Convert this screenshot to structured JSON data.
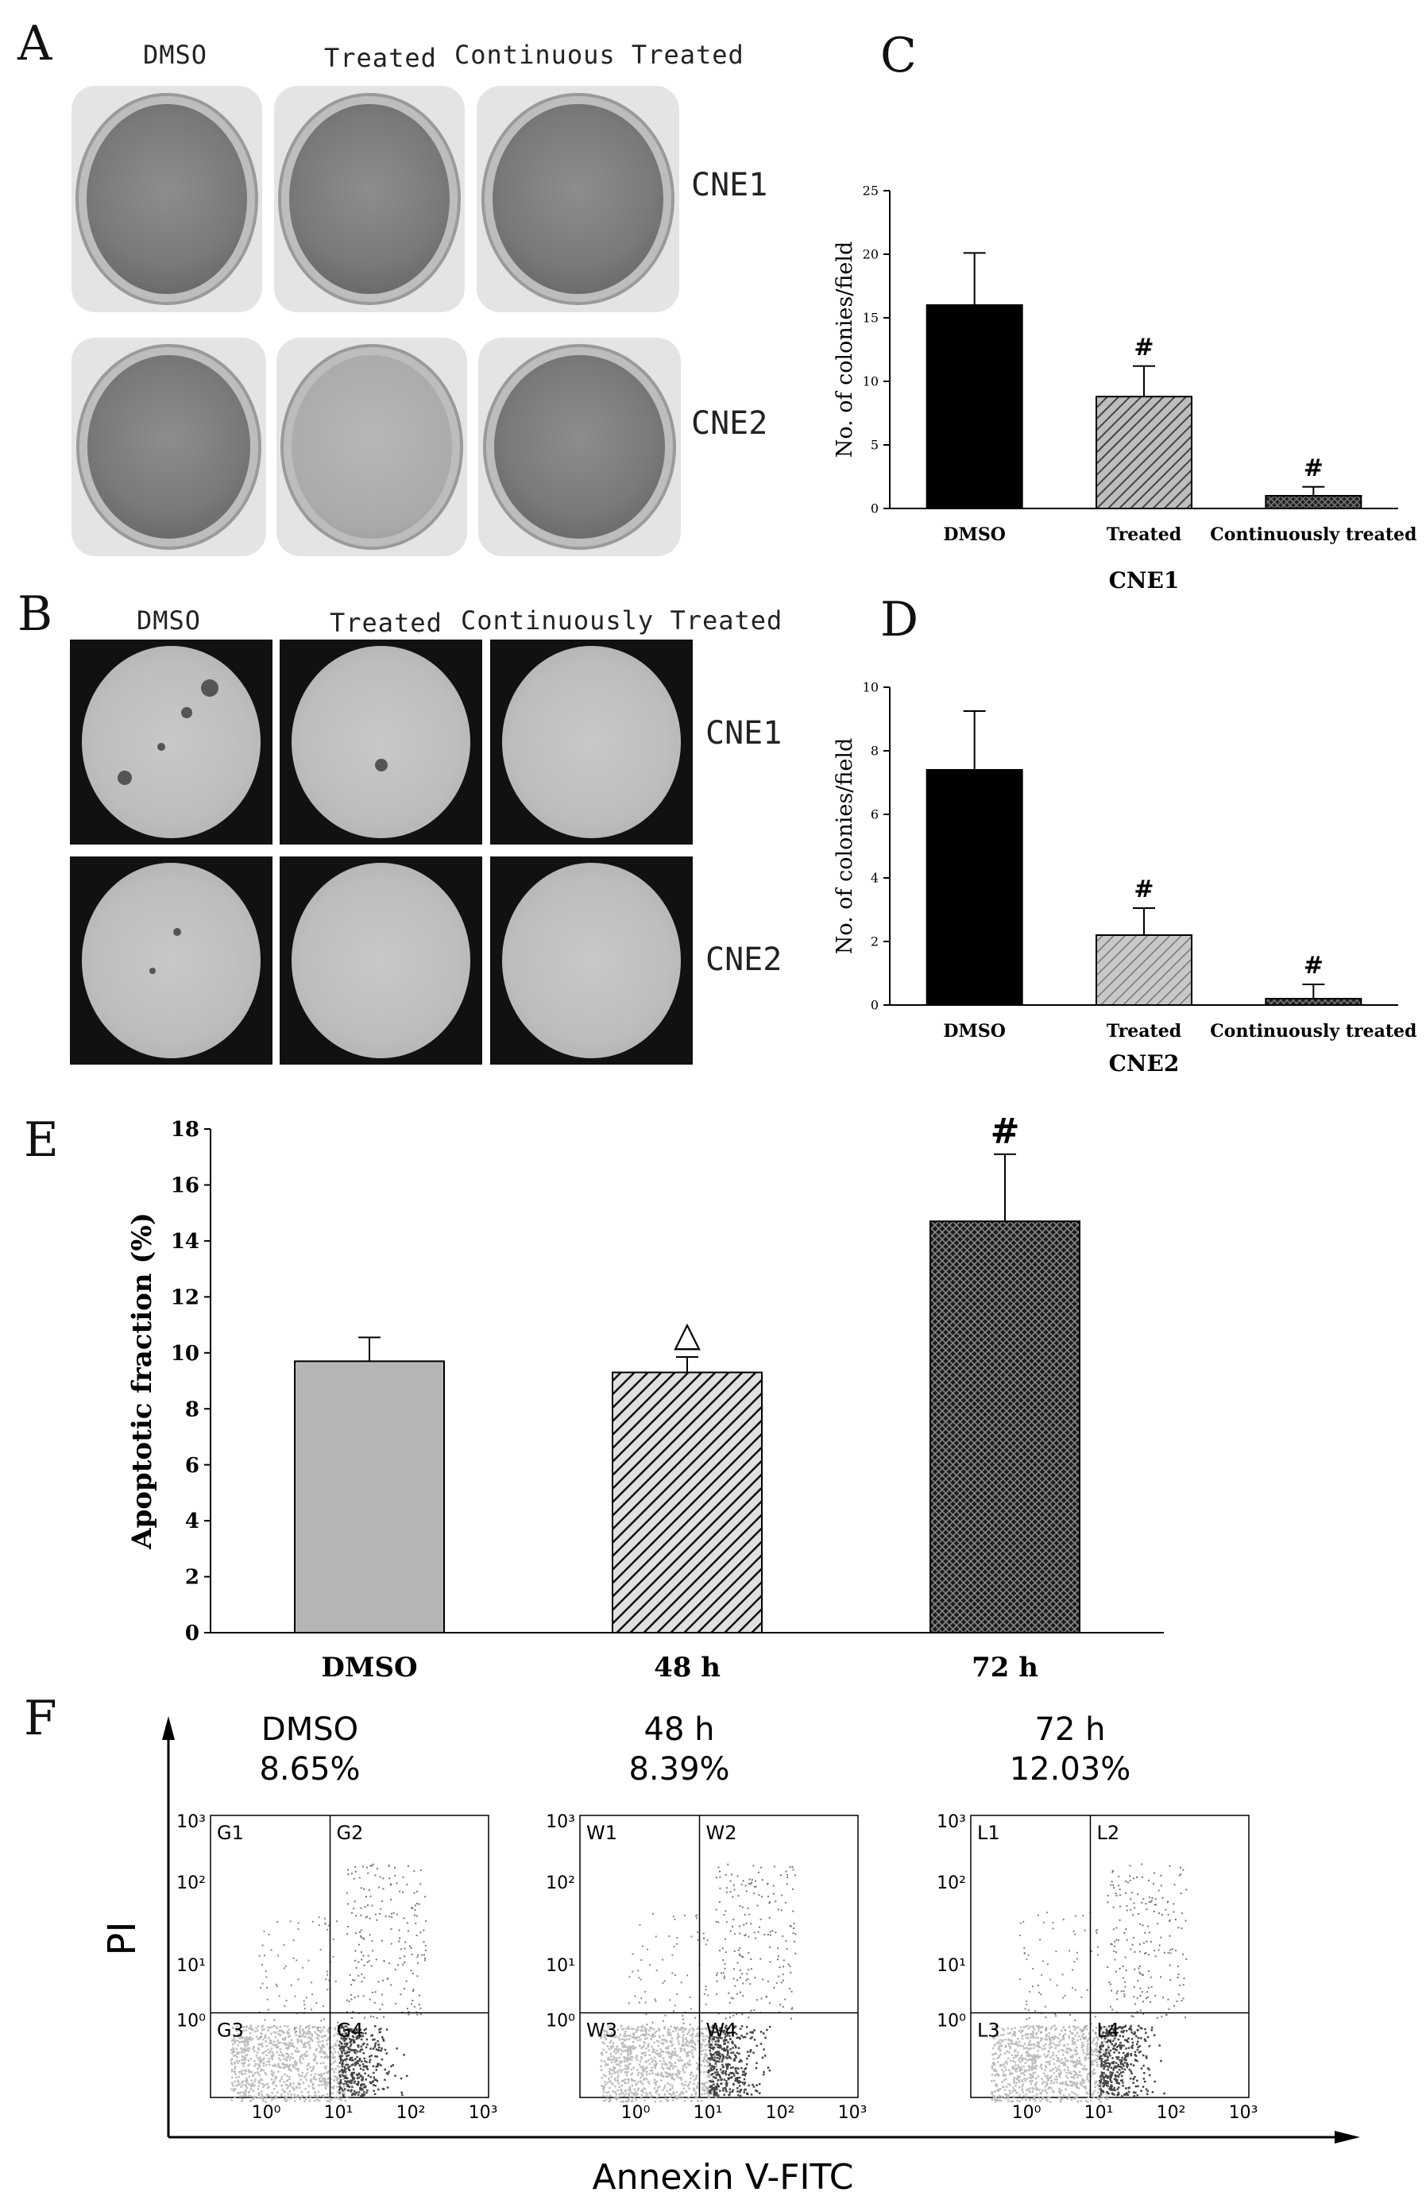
{
  "panels": {
    "A": {
      "letter": "A",
      "columns": [
        "DMSO",
        "Treated",
        "Continuous Treated"
      ],
      "rows": [
        "CNE1",
        "CNE2"
      ]
    },
    "B": {
      "letter": "B",
      "columns": [
        "DMSO",
        "Treated",
        "Continuously Treated"
      ],
      "rows": [
        "CNE1",
        "CNE2"
      ]
    },
    "C": {
      "letter": "C"
    },
    "D": {
      "letter": "D"
    },
    "E": {
      "letter": "E"
    },
    "F": {
      "letter": "F",
      "plots": [
        {
          "title": "DMSO",
          "value": "8.65%",
          "quadrants": [
            "G1",
            "G2",
            "G3",
            "G4"
          ]
        },
        {
          "title": "48 h",
          "value": "8.39%",
          "quadrants": [
            "W1",
            "W2",
            "W3",
            "W4"
          ]
        },
        {
          "title": "72 h",
          "value": "12.03%",
          "quadrants": [
            "L1",
            "L2",
            "L3",
            "L4"
          ]
        }
      ],
      "tick_labels": [
        "10⁰",
        "10¹",
        "10²",
        "10³"
      ],
      "y_axis_label": "PI",
      "x_axis_label": "Annexin V-FITC"
    }
  },
  "chart_data": [
    {
      "panel": "C",
      "type": "bar",
      "categories": [
        "DMSO",
        "Treated",
        "Continuously treated"
      ],
      "values": [
        16,
        8.8,
        1.0
      ],
      "errors": [
        4.1,
        2.4,
        0.7
      ],
      "markers": [
        "",
        "#",
        "#"
      ],
      "ylabel": "No. of colonies/field",
      "xlabel": "CNE1",
      "ylim": [
        0,
        25
      ],
      "yticks": [
        0,
        5,
        10,
        15,
        20,
        25
      ],
      "colors": [
        "#000000",
        "#8a8a8a",
        "#333333"
      ]
    },
    {
      "panel": "D",
      "type": "bar",
      "categories": [
        "DMSO",
        "Treated",
        "Continuously treated"
      ],
      "values": [
        7.4,
        2.2,
        0.2
      ],
      "errors": [
        1.85,
        0.85,
        0.45
      ],
      "markers": [
        "",
        "#",
        "#"
      ],
      "ylabel": "No. of colonies/field",
      "xlabel": "CNE2",
      "ylim": [
        0,
        10
      ],
      "yticks": [
        0,
        2,
        4,
        6,
        8,
        10
      ],
      "colors": [
        "#000000",
        "#9a9a9a",
        "#333333"
      ]
    },
    {
      "panel": "E",
      "type": "bar",
      "categories": [
        "DMSO",
        "48 h",
        "72 h"
      ],
      "values": [
        9.7,
        9.3,
        14.7
      ],
      "errors": [
        0.85,
        0.55,
        2.4
      ],
      "markers": [
        "",
        "△",
        "#"
      ],
      "ylabel": "Apoptotic fraction (%)",
      "ylim": [
        0,
        18
      ],
      "yticks": [
        0,
        2,
        4,
        6,
        8,
        10,
        12,
        14,
        16,
        18
      ],
      "colors": [
        "#b5b5b5",
        "#222222",
        "#333333"
      ]
    }
  ]
}
